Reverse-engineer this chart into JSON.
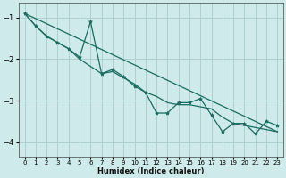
{
  "xlabel": "Humidex (Indice chaleur)",
  "bg_color": "#ceeaea",
  "grid_color": "#afd0d0",
  "line_color": "#1a6b60",
  "xlim": [
    -0.5,
    23.5
  ],
  "ylim": [
    -4.35,
    -0.65
  ],
  "yticks": [
    -4,
    -3,
    -2,
    -1
  ],
  "xticks": [
    0,
    1,
    2,
    3,
    4,
    5,
    6,
    7,
    8,
    9,
    10,
    11,
    12,
    13,
    14,
    15,
    16,
    17,
    18,
    19,
    20,
    21,
    22,
    23
  ],
  "zigzag_x": [
    0,
    1,
    2,
    3,
    4,
    5,
    6,
    7,
    8,
    9,
    10,
    11,
    12,
    13,
    14,
    15,
    16,
    17,
    18,
    19,
    20,
    21,
    22,
    23
  ],
  "zigzag_y": [
    -0.9,
    -1.2,
    -1.45,
    -1.6,
    -1.75,
    -1.95,
    -1.1,
    -2.35,
    -2.25,
    -2.42,
    -2.65,
    -2.8,
    -3.3,
    -3.3,
    -3.05,
    -3.05,
    -2.95,
    -3.35,
    -3.75,
    -3.55,
    -3.55,
    -3.8,
    -3.5,
    -3.6
  ],
  "trend_x": [
    0,
    23
  ],
  "trend_y": [
    -0.9,
    -3.75
  ],
  "smooth_x": [
    0,
    1,
    2,
    3,
    4,
    5,
    7,
    8,
    9,
    10,
    11,
    12,
    13,
    14,
    15,
    16,
    17,
    18,
    19,
    20,
    21,
    22,
    23
  ],
  "smooth_y": [
    -0.9,
    -1.2,
    -1.45,
    -1.6,
    -1.75,
    -2.0,
    -2.35,
    -2.3,
    -2.45,
    -2.6,
    -2.8,
    -2.9,
    -3.05,
    -3.1,
    -3.1,
    -3.15,
    -3.2,
    -3.4,
    -3.55,
    -3.6,
    -3.65,
    -3.7,
    -3.75
  ]
}
